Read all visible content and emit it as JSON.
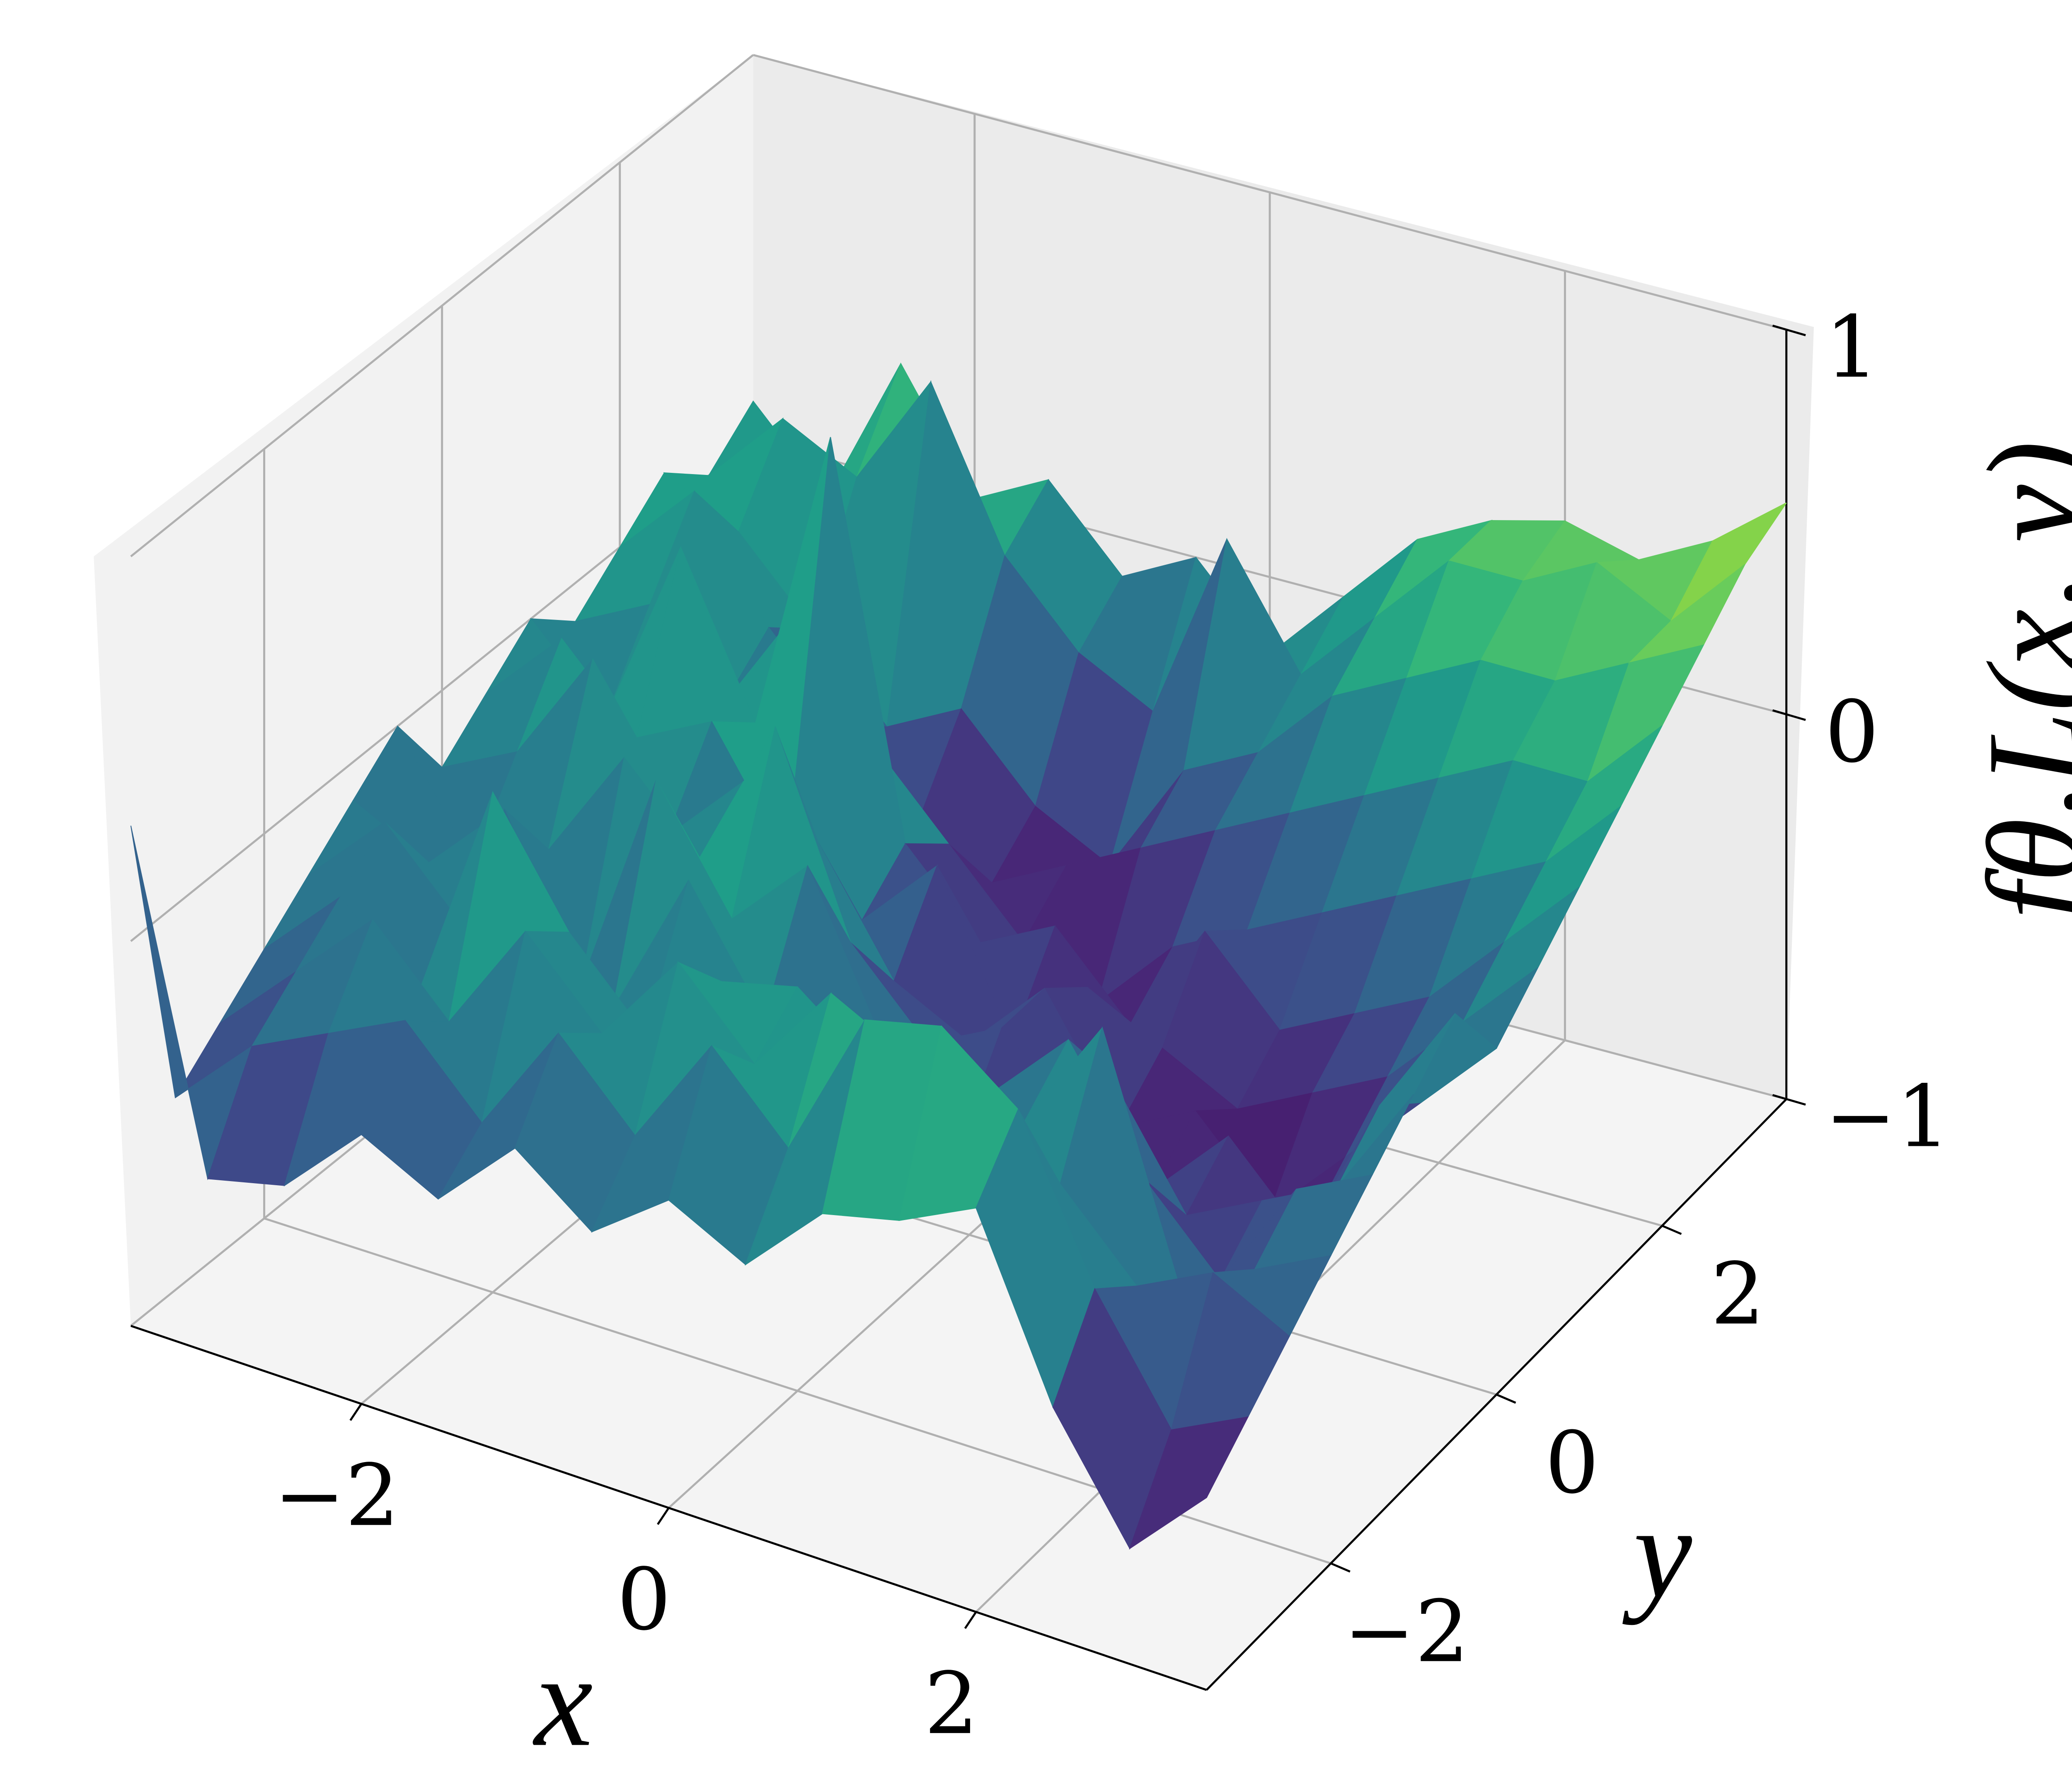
{
  "chart_data": {
    "type": "surface",
    "colormap": "viridis",
    "x": [
      -3.5,
      -3,
      -2.5,
      -2,
      -1.5,
      -1,
      -0.5,
      0,
      0.5,
      1,
      1.5,
      2,
      2.5,
      3,
      3.5
    ],
    "y": [
      -3.5,
      -3,
      -2.5,
      -2,
      -1.5,
      -1,
      -0.5,
      0,
      0.5,
      1,
      1.5,
      2,
      2.5,
      3,
      3.5
    ],
    "z": [
      [
        0.3,
        -0.55,
        -0.5,
        -0.3,
        -0.4,
        -0.2,
        -0.35,
        -0.2,
        -0.3,
        -0.1,
        -0.05,
        0.05,
        -0.4,
        -0.7,
        -0.5
      ],
      [
        -0.5,
        -0.3,
        -0.2,
        -0.1,
        -0.3,
        0.0,
        -0.2,
        0.1,
        -0.1,
        0.3,
        0.35,
        0.2,
        -0.2,
        -0.5,
        -0.4
      ],
      [
        -0.4,
        -0.2,
        0.0,
        -0.2,
        0.1,
        -0.1,
        0.15,
        -0.05,
        0.2,
        0.1,
        -0.2,
        -0.1,
        -0.3,
        -0.2,
        -0.3
      ],
      [
        -0.3,
        -0.1,
        -0.3,
        0.3,
        0.0,
        -0.2,
        0.0,
        0.05,
        -0.1,
        -0.3,
        -0.1,
        0.2,
        -0.4,
        -0.3,
        -0.2
      ],
      [
        -0.2,
        0.0,
        -0.2,
        -0.1,
        -0.3,
        0.1,
        -0.2,
        -0.3,
        -0.4,
        -0.2,
        0.0,
        -0.3,
        -0.5,
        -0.2,
        -0.1
      ],
      [
        -0.1,
        -0.2,
        0.0,
        -0.4,
        0.2,
        -0.1,
        0.1,
        -0.3,
        -0.5,
        -0.4,
        -0.2,
        -0.5,
        -0.4,
        -0.3,
        0.0
      ],
      [
        0.0,
        -0.3,
        -0.2,
        0.1,
        -0.1,
        0.3,
        -0.2,
        -0.4,
        -0.3,
        -0.5,
        -0.6,
        -0.4,
        -0.6,
        -0.2,
        0.1
      ],
      [
        -0.2,
        -0.1,
        0.2,
        -0.2,
        0.0,
        -0.1,
        -0.4,
        -0.5,
        -0.3,
        -0.6,
        -0.5,
        -0.7,
        -0.5,
        -0.3,
        -0.1
      ],
      [
        -0.1,
        0.1,
        -0.1,
        0.0,
        -0.3,
        -0.4,
        -0.2,
        -0.6,
        -0.4,
        -0.5,
        -0.6,
        -0.5,
        -0.4,
        -0.2,
        0.0
      ],
      [
        0.0,
        -0.2,
        0.3,
        -0.1,
        0.7,
        -0.3,
        -0.5,
        -0.4,
        -0.6,
        -0.3,
        -0.5,
        -0.4,
        -0.3,
        -0.1,
        0.1
      ],
      [
        -0.1,
        0.0,
        -0.2,
        0.1,
        -0.2,
        -0.4,
        -0.6,
        -0.7,
        -0.5,
        -0.4,
        -0.3,
        -0.2,
        -0.1,
        0.0,
        0.2
      ],
      [
        0.0,
        0.2,
        -0.1,
        -0.3,
        -0.5,
        -0.6,
        -0.5,
        -0.4,
        -0.3,
        -0.2,
        -0.1,
        0.0,
        0.1,
        0.1,
        0.3
      ],
      [
        0.1,
        0.0,
        -0.2,
        -0.4,
        -0.3,
        -0.5,
        -0.6,
        -0.3,
        -0.2,
        0.0,
        0.1,
        0.2,
        0.2,
        0.3,
        0.4
      ],
      [
        0.0,
        0.2,
        0.1,
        0.4,
        0.0,
        -0.2,
        -0.3,
        0.2,
        -0.1,
        0.1,
        0.3,
        0.3,
        0.4,
        0.3,
        0.5
      ],
      [
        0.1,
        -0.1,
        0.3,
        0.0,
        0.1,
        -0.1,
        0.0,
        -0.2,
        0.0,
        0.2,
        0.3,
        0.35,
        0.3,
        0.4,
        0.55
      ]
    ],
    "xlim": [
      -3.5,
      3.5
    ],
    "ylim": [
      -3.5,
      3.5
    ],
    "zlim": [
      -1,
      1
    ],
    "xticks": [
      {
        "value": -2,
        "label": "−2"
      },
      0,
      2
    ],
    "yticks": [
      {
        "value": -2,
        "label": "−2"
      },
      0,
      2
    ],
    "zticks": [
      {
        "value": -1,
        "label": "−1"
      },
      0,
      1
    ],
    "xlabel": "x",
    "ylabel": "y",
    "zlabel": "fθ,L(x, y)",
    "grid": true
  }
}
